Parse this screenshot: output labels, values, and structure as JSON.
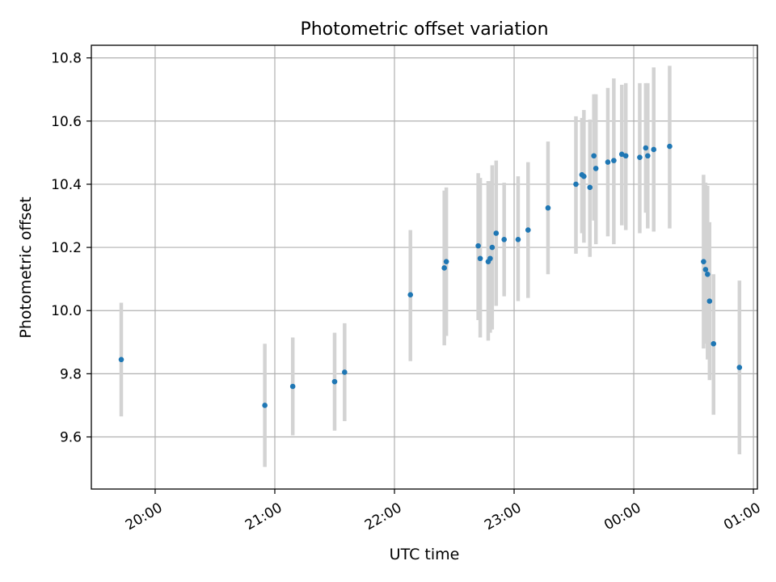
{
  "chart_data": {
    "type": "scatter",
    "title": "Photometric offset variation",
    "xlabel": "UTC time",
    "ylabel": "Photometric offset",
    "grid": true,
    "xlim": [
      "19:28",
      "01:02"
    ],
    "ylim": [
      9.435,
      10.84
    ],
    "xticks": [
      "20:00",
      "21:00",
      "22:00",
      "23:00",
      "00:00",
      "01:00"
    ],
    "yticks": [
      9.6,
      9.8,
      10.0,
      10.2,
      10.4,
      10.6,
      10.8
    ],
    "ytick_labels": [
      "9.6",
      "9.8",
      "10.0",
      "10.2",
      "10.4",
      "10.6",
      "10.8"
    ],
    "colors": {
      "point": "#1f77b4",
      "errorbar": "#d3d3d3",
      "grid": "#b0b0b0"
    },
    "points": [
      {
        "x": "19:43",
        "y": 9.845,
        "ylo": 9.665,
        "yhi": 10.025
      },
      {
        "x": "20:55",
        "y": 9.7,
        "ylo": 9.505,
        "yhi": 9.895
      },
      {
        "x": "21:09",
        "y": 9.76,
        "ylo": 9.605,
        "yhi": 9.915
      },
      {
        "x": "21:30",
        "y": 9.775,
        "ylo": 9.62,
        "yhi": 9.93
      },
      {
        "x": "21:35",
        "y": 9.805,
        "ylo": 9.65,
        "yhi": 9.96
      },
      {
        "x": "22:08",
        "y": 10.05,
        "ylo": 9.84,
        "yhi": 10.255
      },
      {
        "x": "22:25",
        "y": 10.135,
        "ylo": 9.89,
        "yhi": 10.38
      },
      {
        "x": "22:26",
        "y": 10.155,
        "ylo": 9.92,
        "yhi": 10.39
      },
      {
        "x": "22:42",
        "y": 10.205,
        "ylo": 9.97,
        "yhi": 10.435
      },
      {
        "x": "22:43",
        "y": 10.165,
        "ylo": 9.915,
        "yhi": 10.42
      },
      {
        "x": "22:47",
        "y": 10.155,
        "ylo": 9.905,
        "yhi": 10.41
      },
      {
        "x": "22:48",
        "y": 10.165,
        "ylo": 9.93,
        "yhi": 10.41
      },
      {
        "x": "22:49",
        "y": 10.2,
        "ylo": 9.94,
        "yhi": 10.46
      },
      {
        "x": "22:51",
        "y": 10.245,
        "ylo": 10.015,
        "yhi": 10.475
      },
      {
        "x": "22:55",
        "y": 10.225,
        "ylo": 10.045,
        "yhi": 10.405
      },
      {
        "x": "23:02",
        "y": 10.225,
        "ylo": 10.03,
        "yhi": 10.425
      },
      {
        "x": "23:07",
        "y": 10.255,
        "ylo": 10.04,
        "yhi": 10.47
      },
      {
        "x": "23:17",
        "y": 10.325,
        "ylo": 10.115,
        "yhi": 10.535
      },
      {
        "x": "23:31",
        "y": 10.4,
        "ylo": 10.18,
        "yhi": 10.615
      },
      {
        "x": "23:34",
        "y": 10.43,
        "ylo": 10.245,
        "yhi": 10.61
      },
      {
        "x": "23:35",
        "y": 10.425,
        "ylo": 10.215,
        "yhi": 10.635
      },
      {
        "x": "23:38",
        "y": 10.39,
        "ylo": 10.17,
        "yhi": 10.605
      },
      {
        "x": "23:40",
        "y": 10.49,
        "ylo": 10.285,
        "yhi": 10.685
      },
      {
        "x": "23:41",
        "y": 10.45,
        "ylo": 10.21,
        "yhi": 10.685
      },
      {
        "x": "23:47",
        "y": 10.47,
        "ylo": 10.235,
        "yhi": 10.705
      },
      {
        "x": "23:50",
        "y": 10.475,
        "ylo": 10.21,
        "yhi": 10.735
      },
      {
        "x": "23:54",
        "y": 10.495,
        "ylo": 10.27,
        "yhi": 10.715
      },
      {
        "x": "23:56",
        "y": 10.49,
        "ylo": 10.255,
        "yhi": 10.72
      },
      {
        "x": "00:03",
        "y": 10.485,
        "ylo": 10.245,
        "yhi": 10.72
      },
      {
        "x": "00:06",
        "y": 10.515,
        "ylo": 10.31,
        "yhi": 10.72
      },
      {
        "x": "00:07",
        "y": 10.49,
        "ylo": 10.26,
        "yhi": 10.72
      },
      {
        "x": "00:10",
        "y": 10.51,
        "ylo": 10.25,
        "yhi": 10.77
      },
      {
        "x": "00:18",
        "y": 10.52,
        "ylo": 10.26,
        "yhi": 10.775
      },
      {
        "x": "00:35",
        "y": 10.155,
        "ylo": 9.88,
        "yhi": 10.43
      },
      {
        "x": "00:36",
        "y": 10.13,
        "ylo": 9.895,
        "yhi": 10.405
      },
      {
        "x": "00:37",
        "y": 10.115,
        "ylo": 9.845,
        "yhi": 10.395
      },
      {
        "x": "00:38",
        "y": 10.03,
        "ylo": 9.78,
        "yhi": 10.28
      },
      {
        "x": "00:40",
        "y": 9.895,
        "ylo": 9.67,
        "yhi": 10.115
      },
      {
        "x": "00:53",
        "y": 9.82,
        "ylo": 9.545,
        "yhi": 10.095
      }
    ]
  }
}
